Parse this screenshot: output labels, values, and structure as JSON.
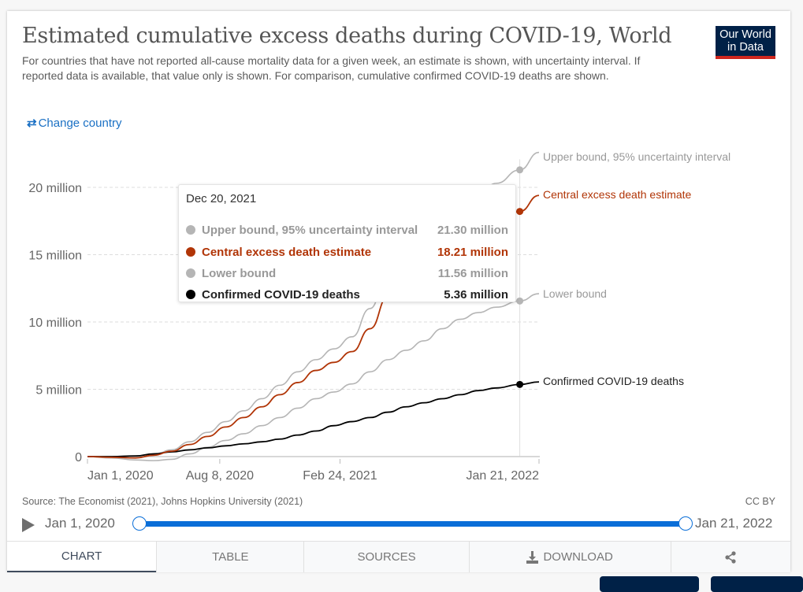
{
  "header": {
    "title": "Estimated cumulative excess deaths during COVID-19, World",
    "subtitle": "For countries that have not reported all-cause mortality data for a given week, an estimate is shown, with uncertainty interval. If reported data is available, that value only is shown. For comparison, cumulative confirmed COVID-19 deaths are shown.",
    "logo_line1": "Our World",
    "logo_line2": "in Data",
    "change_country_icon": "swap-arrows-icon",
    "change_country_label": "Change country"
  },
  "tooltip": {
    "date": "Dec 20, 2021",
    "rows": [
      {
        "label": "Upper bound, 95% uncertainty interval",
        "value": "21.30 million",
        "color": "#b5b5b5",
        "text_color": "#999999"
      },
      {
        "label": "Central excess death estimate",
        "value": "18.21 million",
        "color": "#b13507",
        "text_color": "#b13507"
      },
      {
        "label": "Lower bound",
        "value": "11.56 million",
        "color": "#b5b5b5",
        "text_color": "#999999"
      },
      {
        "label": "Confirmed COVID-19 deaths",
        "value": "5.36 million",
        "color": "#000000",
        "text_color": "#222222"
      }
    ]
  },
  "chart_data": {
    "type": "line",
    "title": "Estimated cumulative excess deaths during COVID-19, World",
    "xlabel": "",
    "ylabel": "",
    "x_start": "2020-01-01",
    "x_end": "2022-01-21",
    "x_ticks": [
      {
        "label": "Jan 1, 2020",
        "day": 0
      },
      {
        "label": "Aug 8, 2020",
        "day": 220
      },
      {
        "label": "Feb 24, 2021",
        "day": 420
      },
      {
        "label": "Jan 21, 2022",
        "day": 751
      }
    ],
    "y_ticks": [
      {
        "label": "0",
        "value": 0
      },
      {
        "label": "5 million",
        "value": 5
      },
      {
        "label": "10 million",
        "value": 10
      },
      {
        "label": "15 million",
        "value": 15
      },
      {
        "label": "20 million",
        "value": 20
      }
    ],
    "ylim": [
      0,
      21.5
    ],
    "y_unit": "million",
    "grid": "horizontal-dashed",
    "highlight_day": 719,
    "series": [
      {
        "name": "Upper bound, 95% uncertainty interval",
        "color": "#b5b5b5",
        "days": [
          0,
          40,
          80,
          110,
          140,
          170,
          200,
          230,
          260,
          290,
          320,
          350,
          380,
          410,
          440,
          470,
          500,
          530,
          560,
          590,
          620,
          650,
          680,
          719,
          751
        ],
        "values": [
          0,
          -0.05,
          -0.1,
          0.1,
          0.5,
          1.1,
          1.8,
          2.6,
          3.4,
          4.3,
          5.3,
          6.3,
          7.2,
          8.0,
          8.9,
          11.0,
          13.8,
          15.4,
          16.5,
          17.6,
          18.6,
          19.5,
          20.3,
          21.3,
          22.6
        ]
      },
      {
        "name": "Central excess death estimate",
        "color": "#b13507",
        "days": [
          0,
          40,
          80,
          110,
          140,
          170,
          200,
          230,
          260,
          290,
          320,
          350,
          380,
          410,
          440,
          470,
          500,
          530,
          560,
          590,
          620,
          650,
          680,
          719,
          751
        ],
        "values": [
          0,
          -0.05,
          -0.1,
          0.1,
          0.4,
          0.9,
          1.5,
          2.2,
          2.9,
          3.7,
          4.6,
          5.5,
          6.4,
          7.0,
          7.8,
          9.5,
          11.9,
          13.4,
          14.4,
          15.3,
          16.1,
          16.9,
          17.5,
          18.21,
          19.4
        ]
      },
      {
        "name": "Lower bound",
        "color": "#b5b5b5",
        "days": [
          0,
          40,
          80,
          110,
          140,
          170,
          200,
          230,
          260,
          290,
          320,
          350,
          380,
          410,
          440,
          470,
          500,
          530,
          560,
          590,
          620,
          650,
          680,
          719,
          751
        ],
        "values": [
          0,
          -0.1,
          -0.25,
          -0.3,
          -0.2,
          0.2,
          0.7,
          1.2,
          1.7,
          2.3,
          2.9,
          3.6,
          4.3,
          4.8,
          5.4,
          6.3,
          7.2,
          7.9,
          8.6,
          9.5,
          10.2,
          10.7,
          11.1,
          11.56,
          12.1
        ]
      },
      {
        "name": "Confirmed COVID-19 deaths",
        "color": "#000000",
        "days": [
          0,
          40,
          80,
          110,
          140,
          170,
          200,
          230,
          260,
          290,
          320,
          350,
          380,
          410,
          440,
          470,
          500,
          530,
          560,
          590,
          620,
          650,
          680,
          719,
          751
        ],
        "values": [
          0,
          0,
          0.05,
          0.2,
          0.35,
          0.5,
          0.65,
          0.8,
          0.95,
          1.1,
          1.3,
          1.6,
          1.9,
          2.3,
          2.6,
          2.9,
          3.3,
          3.7,
          4.0,
          4.3,
          4.6,
          4.9,
          5.1,
          5.36,
          5.55
        ]
      }
    ],
    "line_labels": [
      {
        "series": 0,
        "text": "Upper bound, 95% uncertainty interval",
        "color": "#999999"
      },
      {
        "series": 1,
        "text": "Central excess death estimate",
        "color": "#b13507"
      },
      {
        "series": 2,
        "text": "Lower bound",
        "color": "#999999"
      },
      {
        "series": 3,
        "text": "Confirmed COVID-19 deaths",
        "color": "#222222"
      }
    ]
  },
  "footer": {
    "source": "Source: The Economist (2021), Johns Hopkins University (2021)",
    "license": "CC BY",
    "timeline_start": "Jan 1, 2020",
    "timeline_end": "Jan 21, 2022",
    "play_icon": "play-icon"
  },
  "tabs": [
    {
      "label": "CHART",
      "active": true
    },
    {
      "label": "TABLE",
      "active": false
    },
    {
      "label": "SOURCES",
      "active": false
    },
    {
      "label": "DOWNLOAD",
      "icon": "download-icon",
      "active": false
    },
    {
      "label": "",
      "icon": "share-icon",
      "active": false
    }
  ],
  "colors": {
    "accent_blue": "#0a6ed8",
    "link_blue": "#1a70c4",
    "owid_navy": "#002147",
    "owid_red": "#ce261e"
  }
}
